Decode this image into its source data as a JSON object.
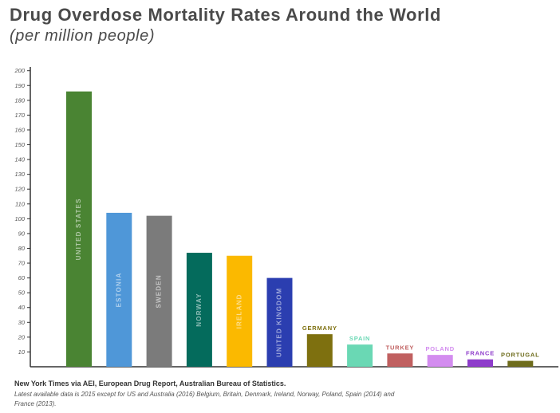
{
  "header": {
    "title": "Drug Overdose Mortality Rates Around the World",
    "subtitle": "(per million people)"
  },
  "footer": {
    "source": "New York Times via AEI, European Drug Report, Australian Bureau of Statistics.",
    "note": "Latest available data is 2015 except for US and Australia (2016) Belgium, Britain, Denmark, Ireland, Norway, Poland, Spain (2014) and France (2013)."
  },
  "chart_data": {
    "type": "bar",
    "title": "Drug Overdose Mortality Rates Around the World",
    "subtitle": "(per million people)",
    "xlabel": "",
    "ylabel": "",
    "ylim": [
      0,
      200
    ],
    "yticks": [
      10,
      20,
      30,
      40,
      50,
      60,
      70,
      80,
      90,
      100,
      110,
      120,
      130,
      140,
      150,
      160,
      170,
      180,
      190,
      200
    ],
    "grid": false,
    "legend": "none",
    "categories": [
      "UNITED STATES",
      "ESTONIA",
      "SWEDEN",
      "NORWAY",
      "IRELAND",
      "UNITED KINGDOM",
      "GERMANY",
      "SPAIN",
      "TURKEY",
      "POLAND",
      "FRANCE",
      "PORTUGAL"
    ],
    "values": [
      186,
      104,
      102,
      77,
      75,
      60,
      22,
      15,
      9,
      8,
      5,
      4
    ],
    "colors": [
      "#4a8433",
      "#4f97d8",
      "#7b7b7b",
      "#046b5c",
      "#fbb900",
      "#2b3eb0",
      "#7e700f",
      "#6ad8b4",
      "#c06060",
      "#d38cef",
      "#8e3ccb",
      "#6e6c1c"
    ],
    "label_position": [
      "inside",
      "inside",
      "inside",
      "inside",
      "inside",
      "inside",
      "above",
      "above",
      "above",
      "above",
      "above",
      "above"
    ]
  }
}
